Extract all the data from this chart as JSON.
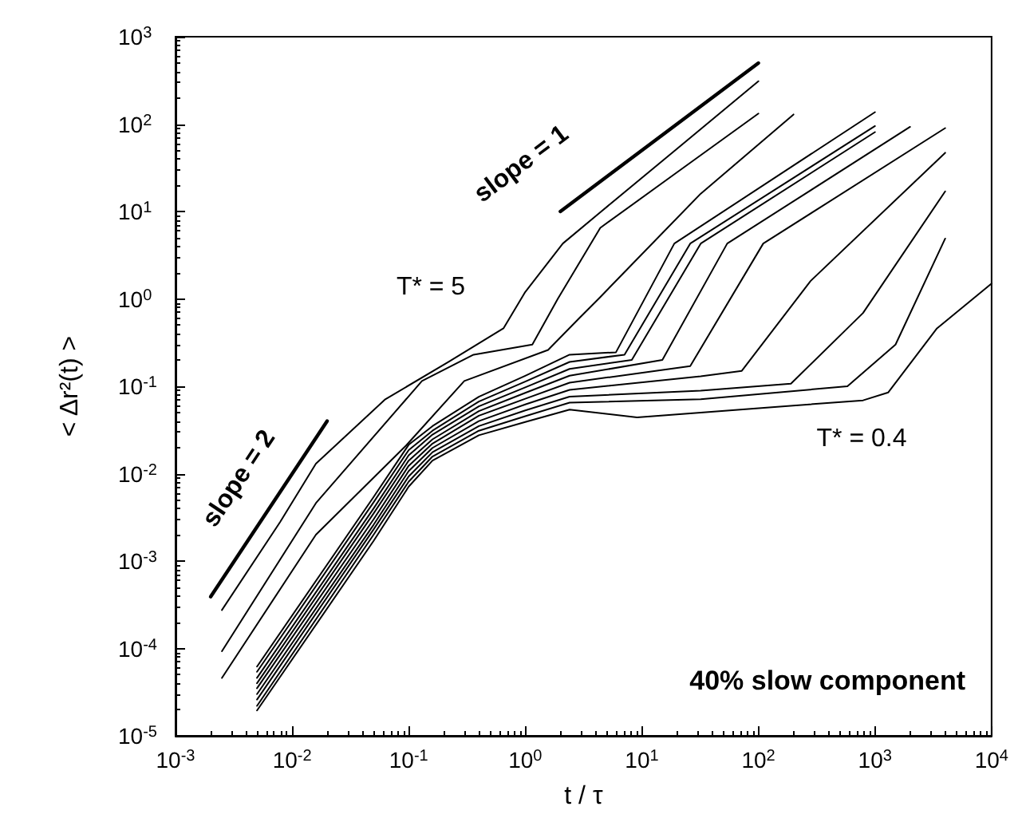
{
  "chart_data": {
    "type": "line",
    "xlabel": "t / τ",
    "ylabel": "< Δr²(t) >",
    "log": "xy",
    "grid": false,
    "marker": "none",
    "line_style": "solid",
    "xlim": [
      0.001,
      10000
    ],
    "ylim": [
      1e-05,
      1000
    ],
    "xticks": [
      {
        "value": 0.001,
        "label": "10$^{-3}$"
      },
      {
        "value": 0.01,
        "label": "10$^{-2}$"
      },
      {
        "value": 0.1,
        "label": "10$^{-1}$"
      },
      {
        "value": 1,
        "label": "10$^{0}$"
      },
      {
        "value": 10,
        "label": "10$^{1}$"
      },
      {
        "value": 100,
        "label": "10$^{2}$"
      },
      {
        "value": 1000,
        "label": "10$^{3}$"
      },
      {
        "value": 10000,
        "label": "10$^{4}$"
      }
    ],
    "yticks": [
      {
        "value": 1e-05,
        "label": "10$^{-5}$"
      },
      {
        "value": 0.0001,
        "label": "10$^{-4}$"
      },
      {
        "value": 0.001,
        "label": "10$^{-3}$"
      },
      {
        "value": 0.01,
        "label": "10$^{-2}$"
      },
      {
        "value": 0.1,
        "label": "10$^{-1}$"
      },
      {
        "value": 1,
        "label": "10$^{0}$"
      },
      {
        "value": 10,
        "label": "10$^{1}$"
      },
      {
        "value": 100,
        "label": "10$^{2}$"
      },
      {
        "value": 1000,
        "label": "10$^{3}$"
      }
    ],
    "series": [
      {
        "color": "#000000",
        "x": [
          0.0025,
          0.0079,
          0.016,
          0.063,
          0.22,
          0.65,
          1.0,
          2.1,
          4.4,
          20,
          100
        ],
        "values": [
          0.000275,
          0.0028,
          0.013,
          0.071,
          0.19,
          0.46,
          1.2,
          4.3,
          9.8,
          52,
          310
        ]
      },
      {
        "color": "#000000",
        "x": [
          0.0025,
          0.016,
          0.13,
          0.36,
          1.15,
          1.9,
          4.4,
          20,
          100
        ],
        "values": [
          9.3e-05,
          0.0046,
          0.115,
          0.23,
          0.3,
          1.0,
          6.5,
          28,
          132
        ]
      },
      {
        "color": "#000000",
        "x": [
          0.0025,
          0.016,
          0.095,
          0.3,
          1.57,
          2.9,
          4.4,
          32,
          200
        ],
        "values": [
          4.6e-05,
          0.002,
          0.021,
          0.115,
          0.26,
          0.6,
          1.05,
          16,
          129
        ]
      },
      {
        "color": "#000000",
        "x": [
          0.005,
          0.05,
          0.1,
          0.16,
          0.4,
          1,
          2.4,
          6.0,
          19,
          1000
        ],
        "values": [
          6.2e-05,
          0.0054,
          0.0214,
          0.035,
          0.076,
          0.132,
          0.23,
          0.245,
          4.3,
          137
        ]
      },
      {
        "color": "#000000",
        "x": [
          0.005,
          0.05,
          0.1,
          0.16,
          0.4,
          1,
          2.4,
          7.1,
          26,
          1000
        ],
        "values": [
          5.4e-05,
          0.0047,
          0.0186,
          0.031,
          0.067,
          0.113,
          0.19,
          0.23,
          4.3,
          95
        ]
      },
      {
        "color": "#000000",
        "x": [
          0.005,
          0.05,
          0.1,
          0.16,
          0.4,
          1,
          2.4,
          8.2,
          32,
          1000
        ],
        "values": [
          4.6e-05,
          0.004,
          0.0162,
          0.028,
          0.059,
          0.097,
          0.158,
          0.2,
          4.3,
          81
        ]
      },
      {
        "color": "#000000",
        "x": [
          0.005,
          0.05,
          0.1,
          0.16,
          0.4,
          1,
          2.4,
          15,
          54,
          2000
        ],
        "values": [
          4e-05,
          0.0035,
          0.0141,
          0.0247,
          0.052,
          0.084,
          0.132,
          0.2,
          4.3,
          93
        ]
      },
      {
        "color": "#000000",
        "x": [
          0.005,
          0.05,
          0.1,
          0.16,
          0.4,
          1,
          2.4,
          26,
          110,
          4000
        ],
        "values": [
          3.5e-05,
          0.003,
          0.0123,
          0.0221,
          0.046,
          0.072,
          0.11,
          0.17,
          4.3,
          90
        ]
      },
      {
        "color": "#000000",
        "x": [
          0.005,
          0.05,
          0.1,
          0.16,
          0.4,
          1,
          2.4,
          32,
          72,
          280,
          4000
        ],
        "values": [
          3e-05,
          0.0026,
          0.0107,
          0.0197,
          0.04,
          0.062,
          0.091,
          0.13,
          0.15,
          1.6,
          47
        ]
      },
      {
        "color": "#000000",
        "x": [
          0.005,
          0.05,
          0.1,
          0.16,
          0.4,
          1,
          2.4,
          32,
          190,
          790,
          4000
        ],
        "values": [
          2.6e-05,
          0.0023,
          0.0093,
          0.0176,
          0.035,
          0.053,
          0.076,
          0.089,
          0.107,
          0.69,
          17
        ]
      },
      {
        "color": "#000000",
        "x": [
          0.005,
          0.05,
          0.1,
          0.16,
          0.4,
          1,
          2.4,
          32,
          580,
          1500,
          4000
        ],
        "values": [
          2.2e-05,
          0.002,
          0.0081,
          0.0157,
          0.031,
          0.0455,
          0.065,
          0.071,
          0.1,
          0.3,
          4.9
        ]
      },
      {
        "color": "#000000",
        "x": [
          0.005,
          0.05,
          0.1,
          0.16,
          0.4,
          1,
          2.4,
          9.1,
          32,
          790,
          1300,
          3400,
          10000
        ],
        "values": [
          1.95e-05,
          0.0017,
          0.0071,
          0.0141,
          0.0275,
          0.039,
          0.054,
          0.044,
          0.05,
          0.069,
          0.085,
          0.46,
          1.5
        ]
      },
      {
        "color": "#000000",
        "x": [
          0.002,
          0.02
        ],
        "values": [
          0.00039,
          0.04
        ]
      },
      {
        "color": "#000000",
        "x": [
          2,
          100
        ],
        "values": [
          10,
          500
        ]
      }
    ],
    "annotations": [
      "slope = 2",
      "slope = 1",
      "T* = 5",
      "T* = 0.4",
      "40% slow component"
    ]
  }
}
